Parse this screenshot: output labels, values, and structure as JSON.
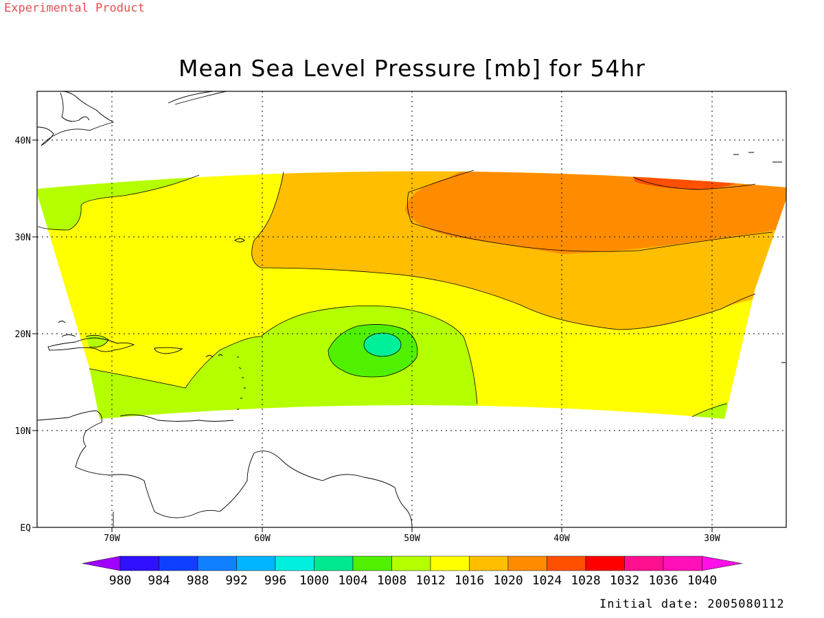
{
  "header": {
    "experimental_label": "Experimental Product",
    "title": "Mean Sea Level Pressure [mb] for 54hr"
  },
  "footer": {
    "initial_date": "Initial date: 2005080112"
  },
  "axes": {
    "x_ticks": [
      "70W",
      "60W",
      "50W",
      "40W",
      "30W"
    ],
    "y_ticks": [
      "40N",
      "30N",
      "20N",
      "10N",
      "EQ"
    ]
  },
  "colorbar": {
    "labels": [
      "980",
      "984",
      "988",
      "992",
      "996",
      "1000",
      "1004",
      "1008",
      "1012",
      "1016",
      "1020",
      "1024",
      "1028",
      "1032",
      "1036",
      "1040"
    ],
    "colors": [
      "#a000ff",
      "#3010ff",
      "#1040ff",
      "#1080ff",
      "#00b4ff",
      "#00f0e0",
      "#00e890",
      "#50f000",
      "#b4ff00",
      "#ffff00",
      "#ffbe00",
      "#ff8c00",
      "#ff5000",
      "#ff0000",
      "#ff1090",
      "#ff10b8",
      "#ff10e8"
    ],
    "colors_note": "first = under-range arrow, last = over-range arrow"
  },
  "field_colors": {
    "p1008": "#b4ff00",
    "p1012": "#ffff00",
    "p1016": "#ffbe00",
    "p1020": "#ff8c00",
    "p1024": "#ff5000",
    "p1004": "#50f000",
    "p1000": "#00f09a"
  }
}
